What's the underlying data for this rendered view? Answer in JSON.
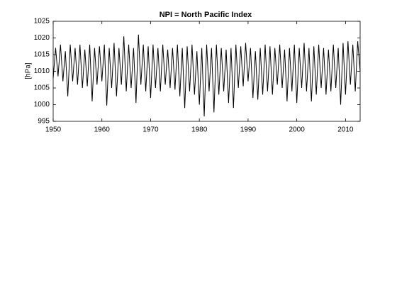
{
  "chart_data": {
    "type": "line",
    "title": "NPI = North Pacific Index",
    "y_label": "[hPa]",
    "xlim": [
      1950,
      2013
    ],
    "xticks": [
      1950,
      1960,
      1970,
      1980,
      1990,
      2000,
      2010
    ],
    "ylim": [
      995,
      1025
    ],
    "yticks": [
      995,
      1000,
      1005,
      1010,
      1015,
      1020,
      1025
    ],
    "x": [
      1950,
      1950.5,
      1951,
      1951.5,
      1952,
      1952.5,
      1953,
      1953.5,
      1954,
      1954.5,
      1955,
      1955.5,
      1956,
      1956.5,
      1957,
      1957.5,
      1958,
      1958.5,
      1959,
      1959.5,
      1960,
      1960.5,
      1961,
      1961.5,
      1962,
      1962.5,
      1963,
      1963.5,
      1964,
      1964.5,
      1965,
      1965.5,
      1966,
      1966.5,
      1967,
      1967.5,
      1968,
      1968.5,
      1969,
      1969.5,
      1970,
      1970.5,
      1971,
      1971.5,
      1972,
      1972.5,
      1973,
      1973.5,
      1974,
      1974.5,
      1975,
      1975.5,
      1976,
      1976.5,
      1977,
      1977.5,
      1978,
      1978.5,
      1979,
      1979.5,
      1980,
      1980.5,
      1981,
      1981.5,
      1982,
      1982.5,
      1983,
      1983.5,
      1984,
      1984.5,
      1985,
      1985.5,
      1986,
      1986.5,
      1987,
      1987.5,
      1988,
      1988.5,
      1989,
      1989.5,
      1990,
      1990.5,
      1991,
      1991.5,
      1992,
      1992.5,
      1993,
      1993.5,
      1994,
      1994.5,
      1995,
      1995.5,
      1996,
      1996.5,
      1997,
      1997.5,
      1998,
      1998.5,
      1999,
      1999.5,
      2000,
      2000.5,
      2001,
      2001.5,
      2002,
      2002.5,
      2003,
      2003.5,
      2004,
      2004.5,
      2005,
      2005.5,
      2006,
      2006.5,
      2007,
      2007.5,
      2008,
      2008.5,
      2009,
      2009.5,
      2010,
      2010.5,
      2011,
      2011.5,
      2012,
      2012.5,
      2013
    ],
    "series": [
      {
        "color": "#000000",
        "values": [
          1008,
          1017,
          1008.5,
          1018,
          1007,
          1016,
          1002.5,
          1018,
          1007,
          1017,
          1006,
          1018,
          1005,
          1016.5,
          1005.5,
          1018,
          1001,
          1017,
          1006,
          1017.5,
          1007,
          1018,
          999.7,
          1017,
          1005,
          1018.5,
          1002.5,
          1017,
          1006,
          1020.5,
          1004,
          1018,
          1005,
          1017,
          1000.5,
          1021,
          1006,
          1018,
          1004,
          1017.5,
          1002,
          1018,
          1005,
          1017,
          1004,
          1018,
          1006,
          1016.5,
          1005,
          1017,
          1004.5,
          1018,
          1002.5,
          1017,
          999,
          1017.5,
          1004,
          1018,
          1003,
          1016,
          1000,
          1017,
          996.5,
          1018,
          1004,
          1017,
          997.7,
          1018,
          1003,
          1017,
          1004,
          1016.5,
          1000.5,
          1017,
          999,
          1018,
          1005,
          1017.5,
          1005.5,
          1018.5,
          1007,
          1017,
          1002,
          1016,
          1001.5,
          1017,
          1003,
          1018,
          1004,
          1017.5,
          1003,
          1017,
          1006,
          1018,
          1005,
          1016.5,
          1001,
          1017,
          1004,
          1018,
          1000.5,
          1017,
          1005,
          1018.5,
          1004,
          1017,
          1001,
          1017.5,
          1003,
          1018,
          1005,
          1017,
          1003,
          1016.5,
          1004,
          1018,
          1005,
          1017,
          1000,
          1018.5,
          1003,
          1019,
          1006,
          1018,
          1004,
          1019,
          1010
        ]
      }
    ]
  }
}
